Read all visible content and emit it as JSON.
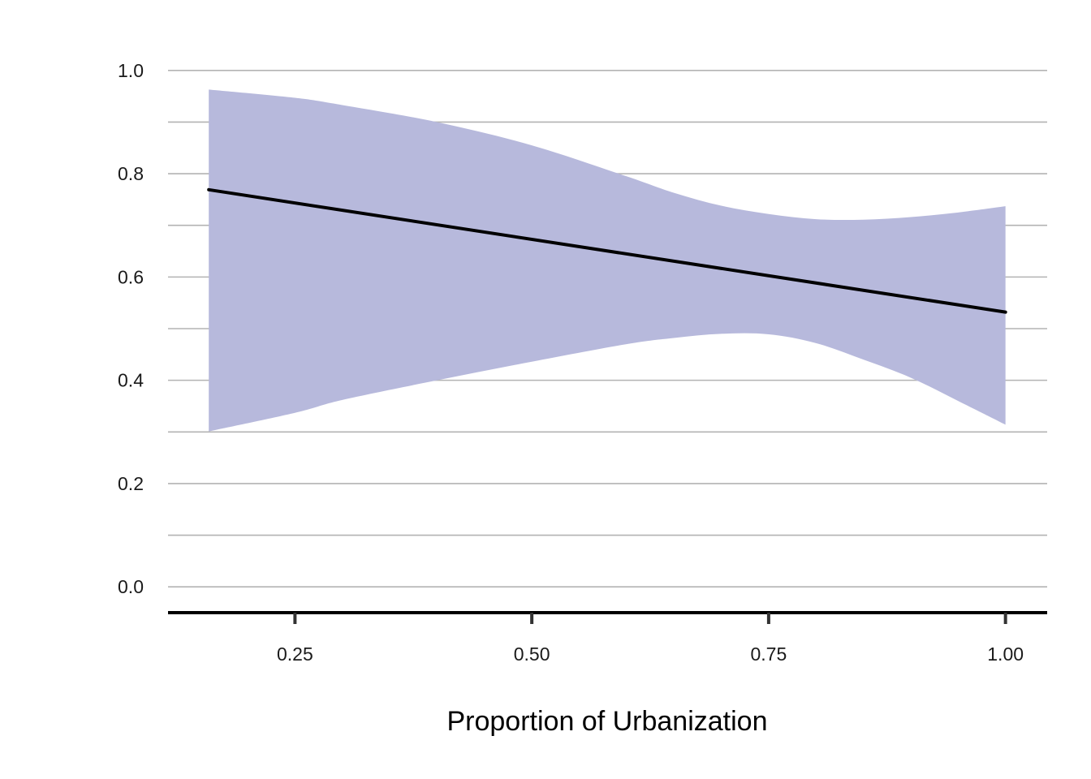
{
  "chart_data": {
    "type": "area",
    "title": "",
    "xlabel": "Proportion of Urbanization",
    "ylabel": "",
    "xlim": [
      0.116,
      1.044
    ],
    "ylim": [
      -0.05,
      1.05
    ],
    "x_ticks": [
      {
        "value": 0.25,
        "label": "0.25"
      },
      {
        "value": 0.5,
        "label": "0.50"
      },
      {
        "value": 0.75,
        "label": "0.75"
      },
      {
        "value": 1.0,
        "label": "1.00"
      }
    ],
    "y_ticks": [
      {
        "value": 0.0,
        "label": "0.0"
      },
      {
        "value": 0.2,
        "label": "0.2"
      },
      {
        "value": 0.4,
        "label": "0.4"
      },
      {
        "value": 0.6,
        "label": "0.6"
      },
      {
        "value": 0.8,
        "label": "0.8"
      },
      {
        "value": 1.0,
        "label": "1.0"
      }
    ],
    "y_minor_gridlines": [
      0.1,
      0.3,
      0.5,
      0.7,
      0.9
    ],
    "grid": "horizontal",
    "series": [
      {
        "kind": "line",
        "x": [
          0.159,
          1.0
        ],
        "y": [
          0.769,
          0.532
        ]
      },
      {
        "kind": "band",
        "x": [
          0.159,
          0.25,
          0.3,
          0.4,
          0.5,
          0.6,
          0.65,
          0.7,
          0.75,
          0.8,
          0.85,
          0.9,
          0.95,
          1.0
        ],
        "upper": [
          0.963,
          0.947,
          0.933,
          0.9,
          0.855,
          0.795,
          0.763,
          0.738,
          0.722,
          0.712,
          0.711,
          0.716,
          0.725,
          0.737
        ],
        "lower": [
          0.301,
          0.337,
          0.362,
          0.4,
          0.436,
          0.47,
          0.482,
          0.49,
          0.489,
          0.472,
          0.44,
          0.405,
          0.36,
          0.314
        ]
      }
    ],
    "colors": {
      "band": "#b7b9dc",
      "line": "#000000",
      "grid": "#b3b3b3",
      "axis": "#000000",
      "tick": "#333333"
    }
  }
}
